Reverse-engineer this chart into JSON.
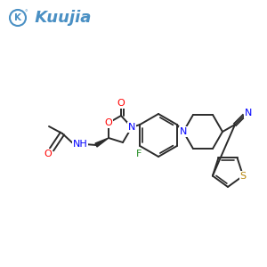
{
  "background_color": "#ffffff",
  "logo_text": "Kuujia",
  "logo_color": "#4a90c4",
  "logo_font_size": 13,
  "bond_color": "#2b2b2b",
  "bond_width": 1.4,
  "atom_colors": {
    "O": "#ff0000",
    "N": "#0000ff",
    "F": "#228B22",
    "S": "#b8860b",
    "C": "#2b2b2b",
    "default": "#2b2b2b"
  },
  "fig_width": 3.0,
  "fig_height": 3.0,
  "dpi": 100
}
